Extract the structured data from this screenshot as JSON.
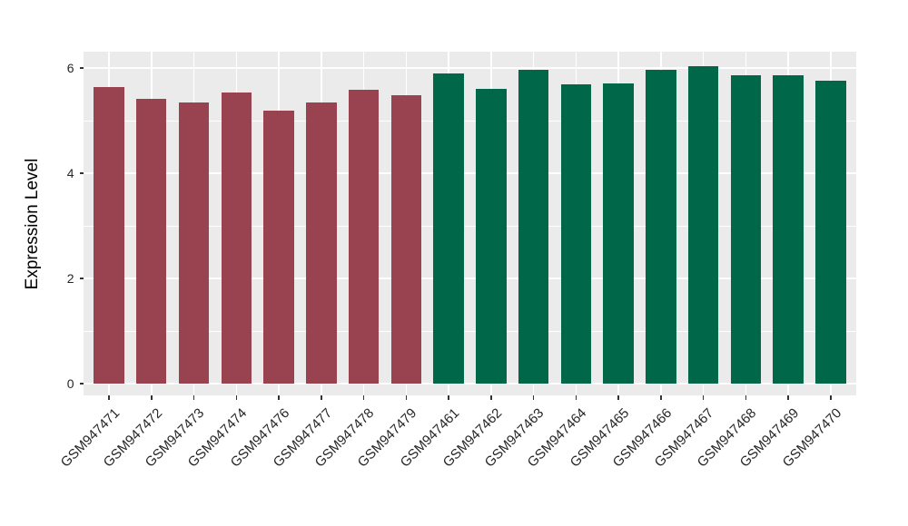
{
  "chart_data": {
    "type": "bar",
    "title": "",
    "xlabel": "",
    "ylabel": "Expression Level",
    "categories": [
      "GSM947471",
      "GSM947472",
      "GSM947473",
      "GSM947474",
      "GSM947476",
      "GSM947477",
      "GSM947478",
      "GSM947479",
      "GSM947461",
      "GSM947462",
      "GSM947463",
      "GSM947464",
      "GSM947465",
      "GSM947466",
      "GSM947467",
      "GSM947468",
      "GSM947469",
      "GSM947470"
    ],
    "values": [
      5.63,
      5.42,
      5.35,
      5.53,
      5.19,
      5.34,
      5.59,
      5.49,
      5.9,
      5.6,
      5.96,
      5.69,
      5.71,
      5.97,
      6.03,
      5.86,
      5.87,
      5.76
    ],
    "bar_groups": [
      "group1",
      "group1",
      "group1",
      "group1",
      "group1",
      "group1",
      "group1",
      "group1",
      "group2",
      "group2",
      "group2",
      "group2",
      "group2",
      "group2",
      "group2",
      "group2",
      "group2",
      "group2"
    ],
    "group_colors": {
      "group1": "#9A4350",
      "group2": "#006849"
    },
    "ytick_labels": [
      "0",
      "2",
      "4",
      "6"
    ],
    "yticks": [
      0,
      2,
      4,
      6
    ],
    "yticks_minor": [
      1,
      3,
      5
    ],
    "ylim": [
      0,
      6.31
    ],
    "grid": "on",
    "legend": "none",
    "panel_bg": "#EBEBEB",
    "grid_color": "#FFFFFF",
    "tick_mark_color": "#333333",
    "tick_text_color": "#262626",
    "axis_title_color": "#000000"
  }
}
